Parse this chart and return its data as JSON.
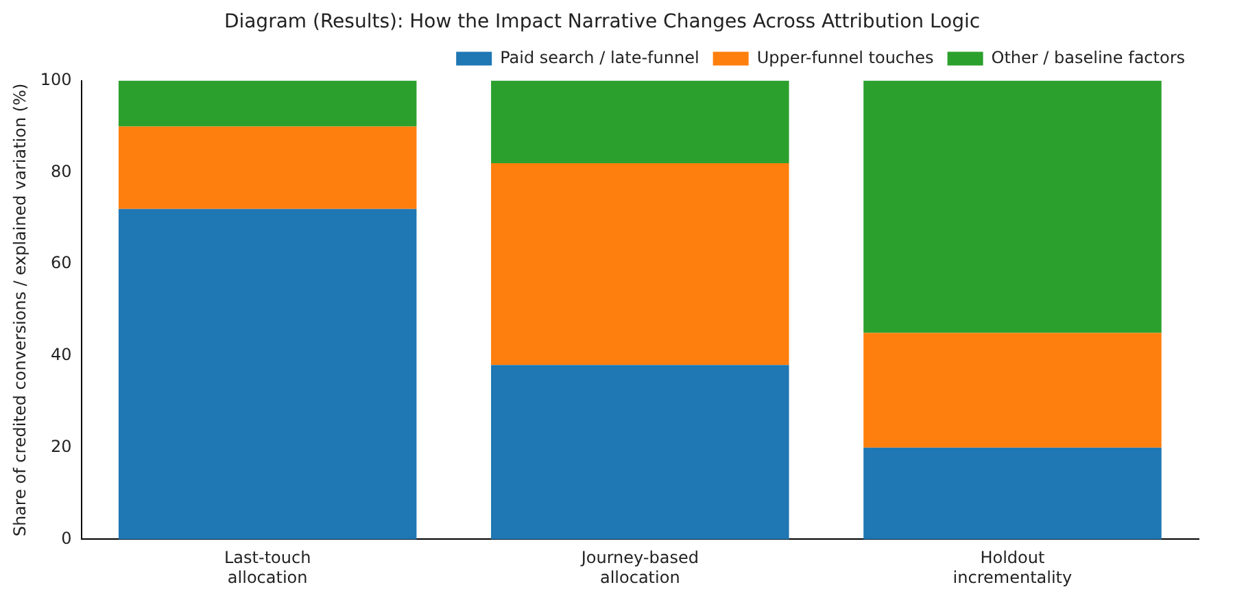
{
  "chart_data": {
    "type": "bar",
    "title": "Diagram (Results): How the Impact Narrative Changes Across Attribution Logic",
    "ylabel": "Share of credited conversions / explained variation (%)",
    "categories": [
      "Last-touch allocation",
      "Journey-based allocation",
      "Holdout incrementality"
    ],
    "stacked": true,
    "series": [
      {
        "name": "Paid search / late-funnel",
        "color": "#1f77b4",
        "values": [
          72,
          38,
          20
        ]
      },
      {
        "name": "Upper-funnel touches",
        "color": "#ff7f0e",
        "values": [
          18,
          44,
          25
        ]
      },
      {
        "name": "Other / baseline factors",
        "color": "#2ca02c",
        "values": [
          10,
          18,
          55
        ]
      }
    ],
    "ylim": [
      0,
      100
    ],
    "yticks": [
      0,
      20,
      40,
      60,
      80,
      100
    ],
    "grid": false,
    "legend": "top right"
  }
}
